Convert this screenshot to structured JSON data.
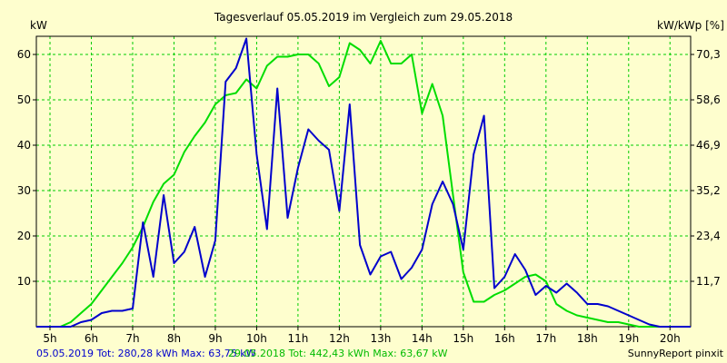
{
  "chart_data": {
    "type": "line",
    "title": "Tagesverlauf 05.05.2019 im Vergleich zum 29.05.2018",
    "ylabel_left": "kW",
    "ylabel_right": "kW/kWp [%]",
    "ylim": [
      0,
      64
    ],
    "xlim": [
      4.67,
      20.5
    ],
    "x_ticks": [
      {
        "x": 5,
        "label": "5h"
      },
      {
        "x": 6,
        "label": "6h"
      },
      {
        "x": 7,
        "label": "7h"
      },
      {
        "x": 8,
        "label": "8h"
      },
      {
        "x": 9,
        "label": "9h"
      },
      {
        "x": 10,
        "label": "10h"
      },
      {
        "x": 11,
        "label": "11h"
      },
      {
        "x": 12,
        "label": "12h"
      },
      {
        "x": 13,
        "label": "13h"
      },
      {
        "x": 14,
        "label": "14h"
      },
      {
        "x": 15,
        "label": "15h"
      },
      {
        "x": 16,
        "label": "16h"
      },
      {
        "x": 17,
        "label": "17h"
      },
      {
        "x": 18,
        "label": "18h"
      },
      {
        "x": 19,
        "label": "19h"
      },
      {
        "x": 20,
        "label": "20h"
      }
    ],
    "y_ticks_left": [
      10,
      20,
      30,
      40,
      50,
      60
    ],
    "y_ticks_right": [
      {
        "y": 10,
        "label": "11,7"
      },
      {
        "y": 20,
        "label": "23,4"
      },
      {
        "y": 30,
        "label": "35,2"
      },
      {
        "y": 40,
        "label": "46,9"
      },
      {
        "y": 50,
        "label": "58,6"
      },
      {
        "y": 60,
        "label": "70,3"
      }
    ],
    "grid": true,
    "series": [
      {
        "name": "05.05.2019",
        "color": "#0000cc",
        "x": [
          4.67,
          5.25,
          5.5,
          5.75,
          6.0,
          6.25,
          6.5,
          6.75,
          7.0,
          7.25,
          7.5,
          7.75,
          8.0,
          8.25,
          8.5,
          8.75,
          9.0,
          9.25,
          9.5,
          9.75,
          10.0,
          10.25,
          10.5,
          10.75,
          11.0,
          11.25,
          11.5,
          11.75,
          12.0,
          12.25,
          12.5,
          12.75,
          13.0,
          13.25,
          13.5,
          13.75,
          14.0,
          14.25,
          14.5,
          14.75,
          15.0,
          15.25,
          15.5,
          15.75,
          16.0,
          16.25,
          16.5,
          16.75,
          17.0,
          17.25,
          17.5,
          17.75,
          18.0,
          18.25,
          18.5,
          18.75,
          19.0,
          19.25,
          19.5,
          19.75,
          20.0,
          20.5
        ],
        "values": [
          0,
          0,
          0,
          1,
          1.5,
          3,
          3.5,
          3.5,
          4,
          23,
          11,
          29,
          14,
          16.5,
          22,
          11,
          19,
          54,
          57,
          63.5,
          38,
          21.5,
          52.5,
          24,
          35,
          43.5,
          41,
          39,
          25.5,
          49,
          18,
          11.5,
          15.5,
          16.5,
          10.5,
          13,
          17,
          27,
          32,
          27,
          17,
          38,
          46.5,
          8.5,
          11,
          16,
          12.5,
          7,
          9,
          7.5,
          9.5,
          7.5,
          5,
          5,
          4.5,
          3.5,
          2.5,
          1.5,
          0.5,
          0,
          0,
          0
        ]
      },
      {
        "name": "29.05.2018",
        "color": "#00dd00",
        "x": [
          4.67,
          5.25,
          5.5,
          5.75,
          6.0,
          6.25,
          6.5,
          6.75,
          7.0,
          7.25,
          7.5,
          7.75,
          8.0,
          8.25,
          8.5,
          8.75,
          9.0,
          9.25,
          9.5,
          9.75,
          10.0,
          10.25,
          10.5,
          10.75,
          11.0,
          11.25,
          11.5,
          11.75,
          12.0,
          12.25,
          12.5,
          12.75,
          13.0,
          13.25,
          13.5,
          13.75,
          14.0,
          14.25,
          14.5,
          14.75,
          15.0,
          15.25,
          15.5,
          15.75,
          16.0,
          16.25,
          16.5,
          16.75,
          17.0,
          17.25,
          17.5,
          17.75,
          18.0,
          18.25,
          18.5,
          18.75,
          19.0,
          19.25,
          19.5,
          19.75,
          20.0,
          20.5
        ],
        "values": [
          0,
          0,
          1,
          3,
          5,
          8,
          11,
          14,
          17.5,
          22,
          27.5,
          31.5,
          33.5,
          38.5,
          42,
          45,
          49,
          51,
          51.5,
          54.5,
          52.5,
          57.5,
          59.5,
          59.5,
          60,
          60,
          58,
          53,
          55,
          62.5,
          61,
          58,
          63,
          58,
          58,
          60,
          47,
          53.5,
          46.5,
          29,
          12,
          5.5,
          5.5,
          7,
          8,
          9.5,
          11,
          11.5,
          10,
          5,
          3.5,
          2.5,
          2,
          1.5,
          1,
          1,
          0.5,
          0,
          0,
          0,
          0,
          0
        ]
      }
    ],
    "footer": {
      "series1_text": "05.05.2019 Tot: 280,28 kWh Max: 63,75 kW",
      "series2_text": "29.05.2018 Tot: 442,43 kWh Max: 63,67 kW",
      "credit": "SunnyReport pinxit"
    }
  }
}
